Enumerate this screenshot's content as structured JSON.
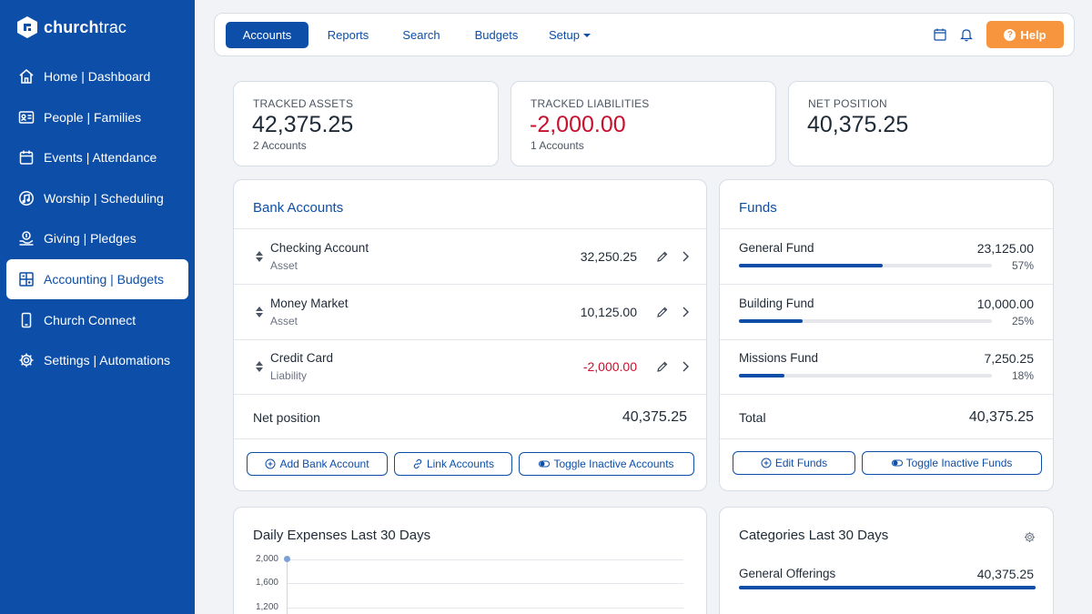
{
  "app": {
    "logo_bold": "church",
    "logo_light": "trac"
  },
  "sidebar": {
    "items": [
      {
        "label": "Home | Dashboard",
        "icon": "home-icon"
      },
      {
        "label": "People | Families",
        "icon": "id-card-icon"
      },
      {
        "label": "Events | Attendance",
        "icon": "calendar-icon"
      },
      {
        "label": "Worship | Scheduling",
        "icon": "music-icon"
      },
      {
        "label": "Giving | Pledges",
        "icon": "giving-icon"
      },
      {
        "label": "Accounting | Budgets",
        "icon": "grid-icon",
        "active": true
      },
      {
        "label": "Church Connect",
        "icon": "phone-icon"
      },
      {
        "label": "Settings | Automations",
        "icon": "gear-icon"
      }
    ]
  },
  "topnav": {
    "tabs": [
      {
        "label": "Accounts",
        "active": true
      },
      {
        "label": "Reports"
      },
      {
        "label": "Search"
      },
      {
        "label": "Budgets"
      },
      {
        "label": "Setup"
      }
    ],
    "help_label": "Help"
  },
  "stats": {
    "assets": {
      "label": "TRACKED ASSETS",
      "value": "42,375.25",
      "sub": "2 Accounts"
    },
    "liabilities": {
      "label": "TRACKED LIABILITIES",
      "value": "-2,000.00",
      "sub": "1 Accounts"
    },
    "net": {
      "label": "NET POSITION",
      "value": "40,375.25"
    }
  },
  "bank_accounts": {
    "title": "Bank Accounts",
    "rows": [
      {
        "name": "Checking Account",
        "type": "Asset",
        "amount": "32,250.25",
        "negative": false
      },
      {
        "name": "Money Market",
        "type": "Asset",
        "amount": "10,125.00",
        "negative": false
      },
      {
        "name": "Credit Card",
        "type": "Liability",
        "amount": "-2,000.00",
        "negative": true
      }
    ],
    "total_label": "Net position",
    "total_value": "40,375.25",
    "buttons": {
      "add": "Add Bank Account",
      "link": "Link Accounts",
      "toggle": "Toggle Inactive Accounts"
    }
  },
  "funds": {
    "title": "Funds",
    "rows": [
      {
        "name": "General Fund",
        "amount": "23,125.00",
        "pct_label": "57%",
        "pct": 57
      },
      {
        "name": "Building Fund",
        "amount": "10,000.00",
        "pct_label": "25%",
        "pct": 25
      },
      {
        "name": "Missions Fund",
        "amount": "7,250.25",
        "pct_label": "18%",
        "pct": 18
      }
    ],
    "total_label": "Total",
    "total_value": "40,375.25",
    "buttons": {
      "edit": "Edit Funds",
      "toggle": "Toggle Inactive Funds"
    }
  },
  "daily_expenses": {
    "title": "Daily Expenses Last 30 Days",
    "chart_data": {
      "type": "line",
      "y_ticks": [
        "2,000",
        "1,600",
        "1,200"
      ],
      "first_point_value": 2000
    }
  },
  "categories": {
    "title": "Categories Last 30 Days",
    "rows": [
      {
        "name": "General Offerings",
        "amount": "40,375.25",
        "pct": 100
      }
    ]
  },
  "colors": {
    "brand": "#0c4ea8",
    "negative": "#c8102e",
    "help": "#f7943e"
  }
}
